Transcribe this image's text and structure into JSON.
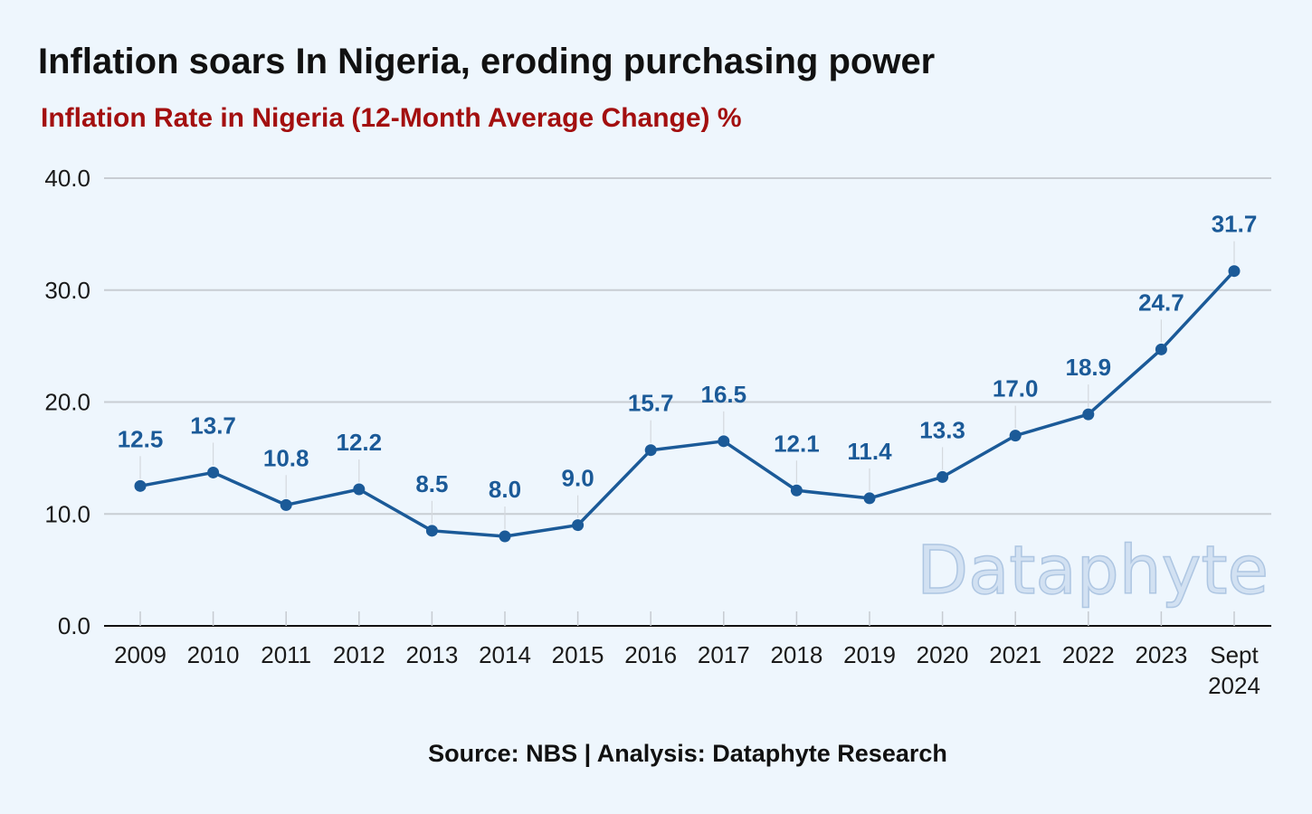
{
  "title": "Inflation soars In Nigeria, eroding purchasing power",
  "subtitle": "Inflation Rate in Nigeria (12-Month Average Change) %",
  "source": "Source: NBS | Analysis: Dataphyte Research",
  "watermark": "Dataphyte",
  "colors": {
    "background": "#eef6fd",
    "line": "#1b5a98",
    "subtitle": "#a30f0f",
    "grid": "#c8cdd3"
  },
  "chart_data": {
    "type": "line",
    "title": "Inflation Rate in Nigeria (12-Month Average Change) %",
    "categories": [
      [
        "2009"
      ],
      [
        "2010"
      ],
      [
        "2011"
      ],
      [
        "2012"
      ],
      [
        "2013"
      ],
      [
        "2014"
      ],
      [
        "2015"
      ],
      [
        "2016"
      ],
      [
        "2017"
      ],
      [
        "2018"
      ],
      [
        "2019"
      ],
      [
        "2020"
      ],
      [
        "2021"
      ],
      [
        "2022"
      ],
      [
        "2023"
      ],
      [
        "Sept",
        "2024"
      ]
    ],
    "series": [
      {
        "values": [
          12.5,
          13.7,
          10.8,
          12.2,
          8.5,
          8.0,
          9.0,
          15.7,
          16.5,
          12.1,
          11.4,
          13.3,
          17.0,
          18.9,
          24.7,
          31.7
        ],
        "labels": [
          "12.5",
          "13.7",
          "10.8",
          "12.2",
          "8.5",
          "8.0",
          "9.0",
          "15.7",
          "16.5",
          "12.1",
          "11.4",
          "13.3",
          "17.0",
          "18.9",
          "24.7",
          "31.7"
        ]
      }
    ],
    "ylim": [
      0,
      40
    ],
    "yticks": [
      0,
      10,
      20,
      30,
      40
    ],
    "ytick_labels": [
      "0.0",
      "10.0",
      "20.0",
      "30.0",
      "40.0"
    ],
    "grid": true,
    "legend": "none"
  }
}
